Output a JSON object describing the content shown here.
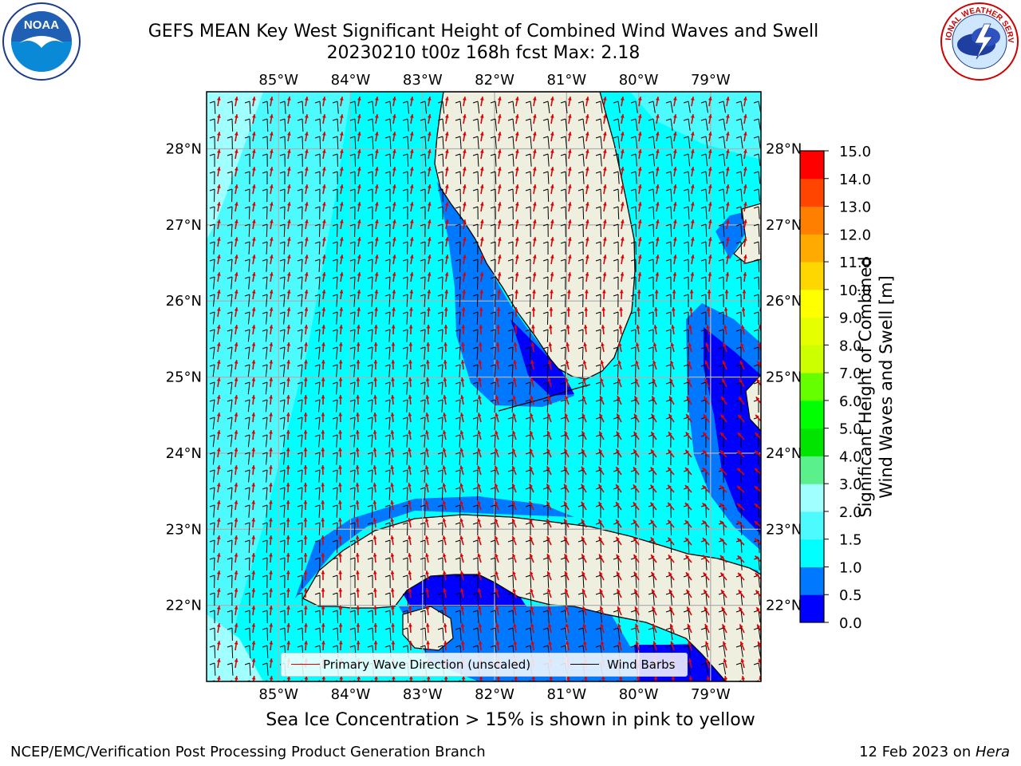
{
  "header": {
    "title_line1": "GEFS MEAN Key West Significant Height of Combined Wind Waves and Swell",
    "title_line2": "20230210 t00z 168h fcst   Max: 2.18"
  },
  "logos": {
    "left": {
      "text": "NOAA",
      "ring_text": "NATIONAL OCEANIC AND ATMOSPHERIC ADMINISTRATION · U.S. DEPARTMENT OF COMMERCE"
    },
    "right": {
      "ring_text": "NATIONAL WEATHER SERVICE"
    }
  },
  "map": {
    "lon_ticks": [
      "85°W",
      "84°W",
      "83°W",
      "82°W",
      "81°W",
      "80°W",
      "79°W"
    ],
    "lat_ticks": [
      "28°N",
      "27°N",
      "26°N",
      "25°N",
      "24°N",
      "23°N",
      "22°N"
    ],
    "lon_values": [
      -85,
      -84,
      -83,
      -82,
      -81,
      -80,
      -79
    ],
    "lat_values": [
      28,
      27,
      26,
      25,
      24,
      23,
      22
    ],
    "extent": {
      "lon_min": -86,
      "lon_max": -78.3,
      "lat_min": 21.0,
      "lat_max": 28.75
    },
    "colors": {
      "ocean_default": "#00ffff",
      "land": "#efefdf",
      "grid": "#b0b0b0",
      "wind_barb": "#000000",
      "wave_arrow": "#e00000"
    }
  },
  "legend": {
    "primary_wave": "Primary Wave Direction (unscaled)",
    "wind_barbs": "Wind Barbs"
  },
  "colorbar": {
    "label_line1": "Significant Height of Combined",
    "label_line2": "Wind Waves and Swell [m]",
    "ticks": [
      "0.0",
      "0.5",
      "1.0",
      "1.5",
      "2.0",
      "3.0",
      "4.0",
      "5.0",
      "6.0",
      "7.0",
      "8.0",
      "9.0",
      "10.0",
      "11.0",
      "12.0",
      "13.0",
      "14.0",
      "15.0"
    ],
    "colors": [
      "#0000ff",
      "#0078ff",
      "#00ffff",
      "#4dfbff",
      "#a0ffff",
      "#5af08c",
      "#00e400",
      "#00ff00",
      "#66ff00",
      "#ccff00",
      "#e6ff00",
      "#ffff00",
      "#ffd700",
      "#ffaa00",
      "#ff7f00",
      "#ff4500",
      "#ff0000"
    ]
  },
  "footer": {
    "sea_ice_note": "Sea Ice Concentration > 15% is shown in pink to yellow",
    "credit_left": "NCEP/EMC/Verification Post Processing Product Generation Branch",
    "credit_right_date": "12 Feb 2023 on ",
    "credit_right_host": "Hera"
  }
}
